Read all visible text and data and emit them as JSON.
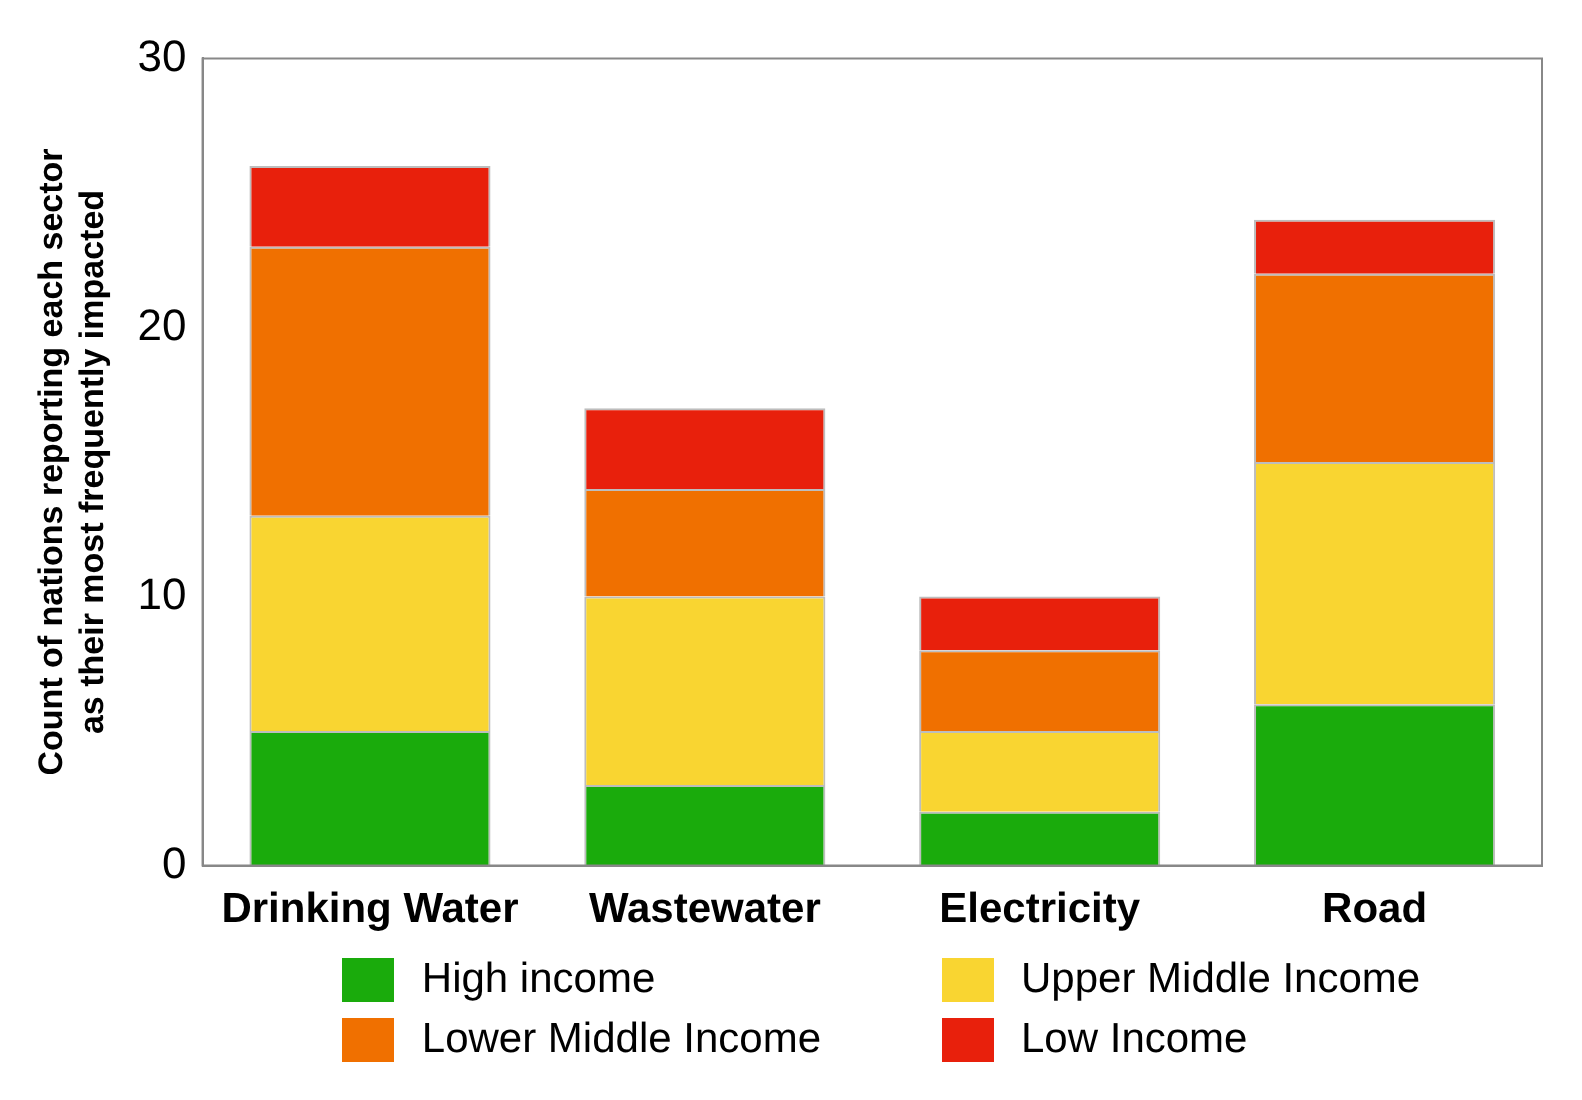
{
  "chart_data": {
    "type": "bar",
    "stacked": true,
    "ylabel": "Count of nations reporting each sector\nas their most frequently impacted",
    "categories": [
      "Drinking Water",
      "Wastewater",
      "Electricity",
      "Road"
    ],
    "series": [
      {
        "name": "High income",
        "color": "#1aab0c",
        "values": [
          5,
          3,
          2,
          6
        ]
      },
      {
        "name": "Upper Middle Income",
        "color": "#f9d531",
        "values": [
          8,
          7,
          3,
          9
        ]
      },
      {
        "name": "Lower Middle Income",
        "color": "#f07000",
        "values": [
          10,
          4,
          3,
          7
        ]
      },
      {
        "name": "Low Income",
        "color": "#e8200c",
        "values": [
          3,
          3,
          2,
          2
        ]
      }
    ],
    "ylim": [
      0,
      30
    ],
    "yticks": [
      0,
      10,
      20,
      30
    ],
    "grid": false,
    "legend": "bottom"
  }
}
